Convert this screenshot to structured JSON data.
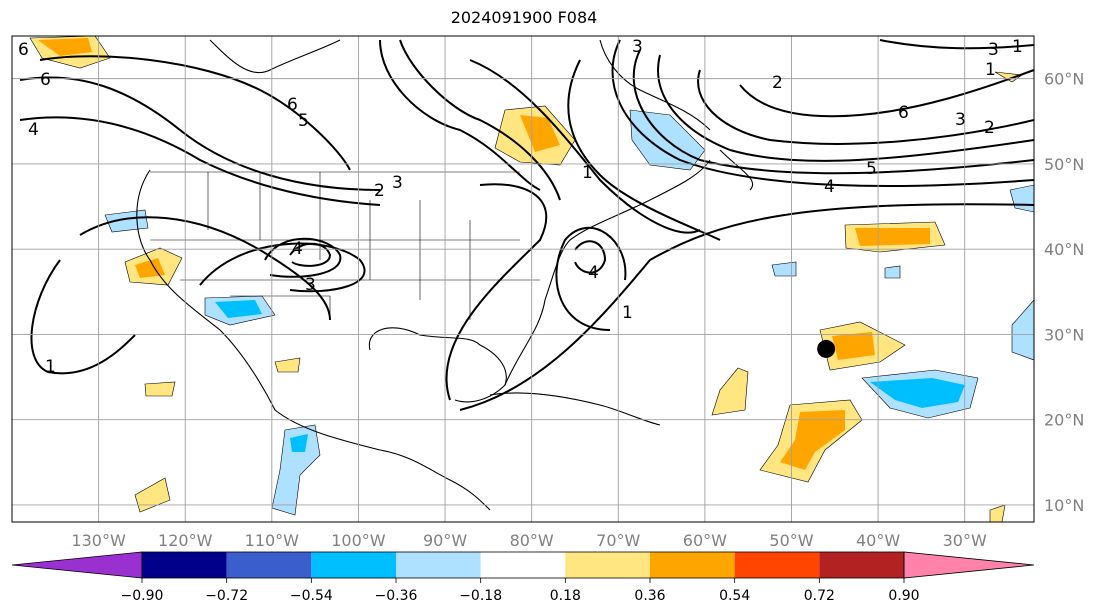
{
  "title": "2024091900 F084",
  "map": {
    "projection": "lat-lon",
    "lon_range": [
      -140,
      -22
    ],
    "lat_range": [
      8,
      65
    ],
    "grid": true,
    "lat_labels": [
      "60°N",
      "50°N",
      "40°N",
      "30°N",
      "20°N",
      "10°N"
    ],
    "lon_labels": [
      "130°W",
      "120°W",
      "110°W",
      "100°W",
      "90°W",
      "80°W",
      "70°W",
      "60°W",
      "50°W",
      "40°W",
      "30°W"
    ],
    "marker": {
      "label": "",
      "lon": -46,
      "lat": 28.3
    }
  },
  "contour_labels": [
    "6",
    "6",
    "4",
    "6",
    "5",
    "2",
    "3",
    "4",
    "3",
    "1",
    "1",
    "4",
    "1",
    "3",
    "3",
    "2",
    "1",
    "6",
    "5",
    "4",
    "3",
    "2",
    "1"
  ],
  "colorbar": {
    "ticks": [
      "−0.90",
      "−0.72",
      "−0.54",
      "−0.36",
      "−0.18",
      "0.18",
      "0.36",
      "0.54",
      "0.72",
      "0.90"
    ],
    "colors": [
      "#9b30d0",
      "#00008b",
      "#3a5fcd",
      "#00bfff",
      "#aee0ff",
      "#ffffff",
      "#ffe680",
      "#ffa500",
      "#ff4500",
      "#b22222",
      "#ff82ab"
    ]
  }
}
